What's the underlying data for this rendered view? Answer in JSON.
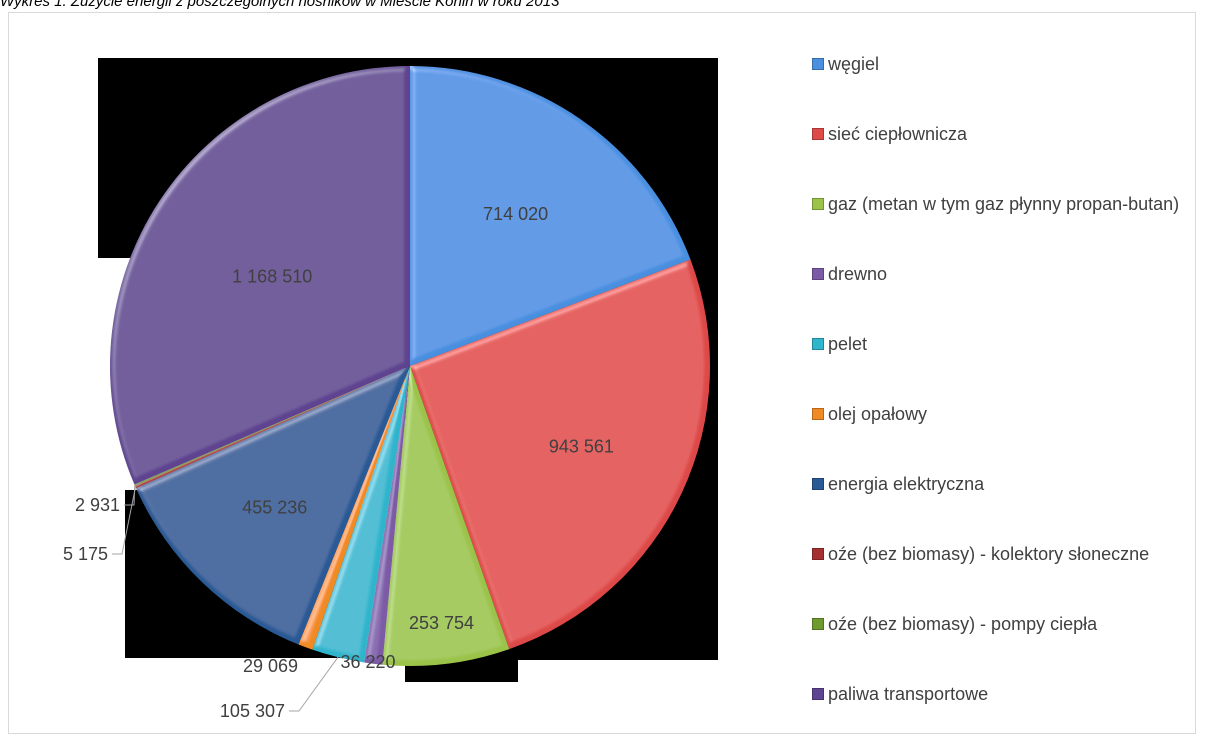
{
  "caption": "Wykres 1. Zużycie energii z poszczególnych nośników w Mieście Konin  w roku 2013",
  "chart_data": {
    "type": "pie",
    "title": "",
    "categories": [
      "węgiel",
      "sieć ciepłownicza",
      "gaz (metan w tym gaz płynny propan-butan)",
      "drewno",
      "pelet",
      "olej opałowy",
      "energia elektryczna",
      "oźe (bez biomasy) - kolektory słoneczne",
      "oźe (bez biomasy) - pompy ciepła",
      "paliwa transportowe"
    ],
    "values": [
      714020,
      943561,
      253754,
      36220,
      105307,
      29069,
      455236,
      5175,
      2931,
      1168510
    ],
    "data_labels": [
      "714 020",
      "943 561",
      "253 754",
      "36 220",
      "105 307",
      "29 069",
      "455 236",
      "5 175",
      "2 931",
      "1 168 510"
    ],
    "colors": [
      "#4a8fe0",
      "#dd4a48",
      "#9bc34a",
      "#7b5aa6",
      "#2fb5cc",
      "#f08a24",
      "#2a5a96",
      "#a63030",
      "#6f9a2e",
      "#5e4390"
    ],
    "legend_position": "right"
  }
}
